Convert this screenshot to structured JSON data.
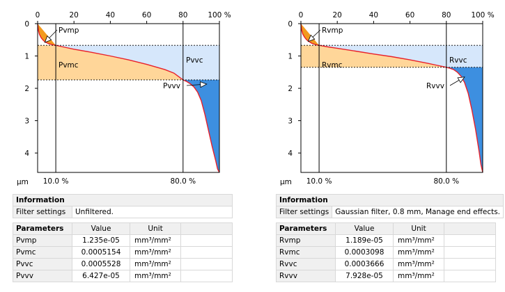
{
  "charts": [
    {
      "chart_data": {
        "type": "area",
        "x_axis": {
          "min": 0,
          "max": 100,
          "ticks": [
            "0",
            "20",
            "40",
            "60",
            "80",
            "100 %"
          ]
        },
        "y_axis": {
          "unit": "µm",
          "min": 0,
          "max": 4.6,
          "ticks": [
            "0",
            "1",
            "2",
            "3",
            "4"
          ]
        },
        "mr1_label": "10.0 %",
        "mr2_label": "80.0 %",
        "mr1": 10,
        "mr2": 80,
        "c_at_mr1": 0.67,
        "c_at_mr2": 1.74,
        "curve": [
          [
            0,
            0.02
          ],
          [
            0.5,
            0.22
          ],
          [
            1,
            0.33
          ],
          [
            2,
            0.44
          ],
          [
            3,
            0.51
          ],
          [
            4,
            0.56
          ],
          [
            6,
            0.62
          ],
          [
            8,
            0.65
          ],
          [
            10,
            0.67
          ],
          [
            15,
            0.73
          ],
          [
            20,
            0.79
          ],
          [
            30,
            0.89
          ],
          [
            40,
            1.0
          ],
          [
            50,
            1.12
          ],
          [
            60,
            1.26
          ],
          [
            70,
            1.42
          ],
          [
            75,
            1.53
          ],
          [
            80,
            1.74
          ],
          [
            82,
            1.79
          ],
          [
            84,
            1.86
          ],
          [
            86,
            1.96
          ],
          [
            88,
            2.12
          ],
          [
            90,
            2.38
          ],
          [
            92,
            2.8
          ],
          [
            94,
            3.3
          ],
          [
            96,
            3.8
          ],
          [
            98,
            4.25
          ],
          [
            99,
            4.5
          ],
          [
            100,
            4.6
          ]
        ],
        "annotations": [
          {
            "label": "Pvmp",
            "target": [
              4,
              0.58
            ]
          },
          {
            "label": "Pvmc"
          },
          {
            "label": "Pvvc"
          },
          {
            "label": "Pvvv",
            "target": [
              93,
              1.87
            ]
          }
        ]
      },
      "info": {
        "header": "Information",
        "filter_label": "Filter settings",
        "filter_value": "Unfiltered."
      },
      "params": {
        "header": "Parameters",
        "value_header": "Value",
        "unit_header": "Unit",
        "rows": [
          {
            "name": "Pvmp",
            "value": "1.235e-05",
            "unit": "mm³/mm²"
          },
          {
            "name": "Pvmc",
            "value": "0.0005154",
            "unit": "mm³/mm²"
          },
          {
            "name": "Pvvc",
            "value": "0.0005528",
            "unit": "mm³/mm²"
          },
          {
            "name": "Pvvv",
            "value": "6.427e-05",
            "unit": "mm³/mm²"
          }
        ]
      }
    },
    {
      "chart_data": {
        "type": "area",
        "x_axis": {
          "min": 0,
          "max": 100,
          "ticks": [
            "0",
            "20",
            "40",
            "60",
            "80",
            "100 %"
          ]
        },
        "y_axis": {
          "unit": "µm",
          "min": 0,
          "max": 4.6,
          "ticks": [
            "0",
            "1",
            "2",
            "3",
            "4"
          ]
        },
        "mr1_label": "10.0 %",
        "mr2_label": "80.0 %",
        "mr1": 10,
        "mr2": 80,
        "c_at_mr1": 0.67,
        "c_at_mr2": 1.35,
        "curve": [
          [
            0,
            0.02
          ],
          [
            0.5,
            0.22
          ],
          [
            1,
            0.32
          ],
          [
            2,
            0.42
          ],
          [
            3,
            0.49
          ],
          [
            4,
            0.54
          ],
          [
            6,
            0.61
          ],
          [
            8,
            0.65
          ],
          [
            10,
            0.67
          ],
          [
            15,
            0.72
          ],
          [
            20,
            0.76
          ],
          [
            30,
            0.85
          ],
          [
            40,
            0.94
          ],
          [
            50,
            1.02
          ],
          [
            60,
            1.12
          ],
          [
            70,
            1.23
          ],
          [
            75,
            1.29
          ],
          [
            80,
            1.35
          ],
          [
            82,
            1.38
          ],
          [
            84,
            1.42
          ],
          [
            86,
            1.5
          ],
          [
            88,
            1.62
          ],
          [
            90,
            1.82
          ],
          [
            92,
            2.15
          ],
          [
            94,
            2.65
          ],
          [
            96,
            3.25
          ],
          [
            98,
            3.95
          ],
          [
            99,
            4.35
          ],
          [
            100,
            4.6
          ]
        ],
        "annotations": [
          {
            "label": "Rvmp",
            "target": [
              4,
              0.55
            ]
          },
          {
            "label": "Rvmc"
          },
          {
            "label": "Rvvc"
          },
          {
            "label": "Rvvv",
            "target": [
              90,
              1.65
            ]
          }
        ]
      },
      "info": {
        "header": "Information",
        "filter_label": "Filter settings",
        "filter_value": "Gaussian filter, 0.8 mm, Manage end effects."
      },
      "params": {
        "header": "Parameters",
        "value_header": "Value",
        "unit_header": "Unit",
        "rows": [
          {
            "name": "Rvmp",
            "value": "1.189e-05",
            "unit": "mm³/mm²"
          },
          {
            "name": "Rvmc",
            "value": "0.0003098",
            "unit": "mm³/mm²"
          },
          {
            "name": "Rvvc",
            "value": "0.0003666",
            "unit": "mm³/mm²"
          },
          {
            "name": "Rvvv",
            "value": "7.928e-05",
            "unit": "mm³/mm²"
          }
        ]
      }
    }
  ],
  "colors": {
    "peak_fill": "#f29a1e",
    "core_material_fill": "#ffd699",
    "core_void_fill": "#d6e7fb",
    "valley_void_fill": "#3d8fe0",
    "curve": "#e8202a"
  }
}
